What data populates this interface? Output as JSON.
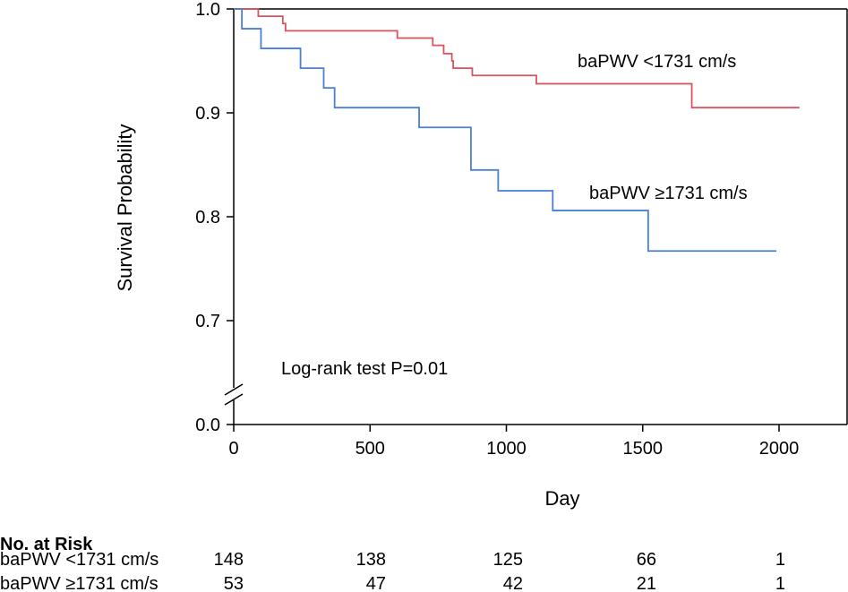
{
  "chart_data": {
    "type": "line",
    "subtype": "kaplan-meier step",
    "title": "",
    "xlabel": "Day",
    "ylabel": "Survival Probability",
    "xlim": [
      0,
      2100
    ],
    "ylim": [
      0.7,
      1.0
    ],
    "y_axis_break": true,
    "y_break_bottom_value": 0.0,
    "x_ticks": [
      0,
      500,
      1000,
      1500,
      2000
    ],
    "x_tick_labels": [
      "0",
      "500",
      "1000",
      "1500",
      "2000"
    ],
    "y_ticks": [
      1.0,
      0.9,
      0.8,
      0.7
    ],
    "y_tick_labels": [
      "1.0",
      "0.9",
      "0.8",
      "0.7"
    ],
    "y_bottom_tick_label": "0.0",
    "grid": false,
    "annotation": "Log-rank test P=0.01",
    "series": [
      {
        "name": "baPWV <1731 cm/s",
        "color": "#d9535f",
        "steps": [
          [
            0,
            1.0
          ],
          [
            90,
            0.993
          ],
          [
            180,
            0.986
          ],
          [
            190,
            0.979
          ],
          [
            600,
            0.972
          ],
          [
            730,
            0.965
          ],
          [
            770,
            0.957
          ],
          [
            800,
            0.95
          ],
          [
            805,
            0.943
          ],
          [
            875,
            0.936
          ],
          [
            1110,
            0.928
          ],
          [
            1680,
            0.905
          ]
        ],
        "end_x": 2075
      },
      {
        "name": "baPWV ≥1731 cm/s",
        "color": "#4a7fd9",
        "steps": [
          [
            0,
            1.0
          ],
          [
            30,
            0.981
          ],
          [
            100,
            0.962
          ],
          [
            245,
            0.943
          ],
          [
            330,
            0.924
          ],
          [
            370,
            0.905
          ],
          [
            680,
            0.886
          ],
          [
            870,
            0.845
          ],
          [
            970,
            0.825
          ],
          [
            1170,
            0.806
          ],
          [
            1520,
            0.767
          ]
        ],
        "end_x": 1990
      }
    ],
    "risk_table": {
      "title": "No. at Risk",
      "timepoints": [
        0,
        500,
        1000,
        1500,
        2000
      ],
      "rows": [
        {
          "label": "baPWV <1731 cm/s",
          "values": [
            "148",
            "138",
            "125",
            "66",
            "1"
          ]
        },
        {
          "label": "baPWV ≥1731 cm/s",
          "values": [
            "53",
            "47",
            "42",
            "21",
            "1"
          ]
        }
      ]
    }
  }
}
